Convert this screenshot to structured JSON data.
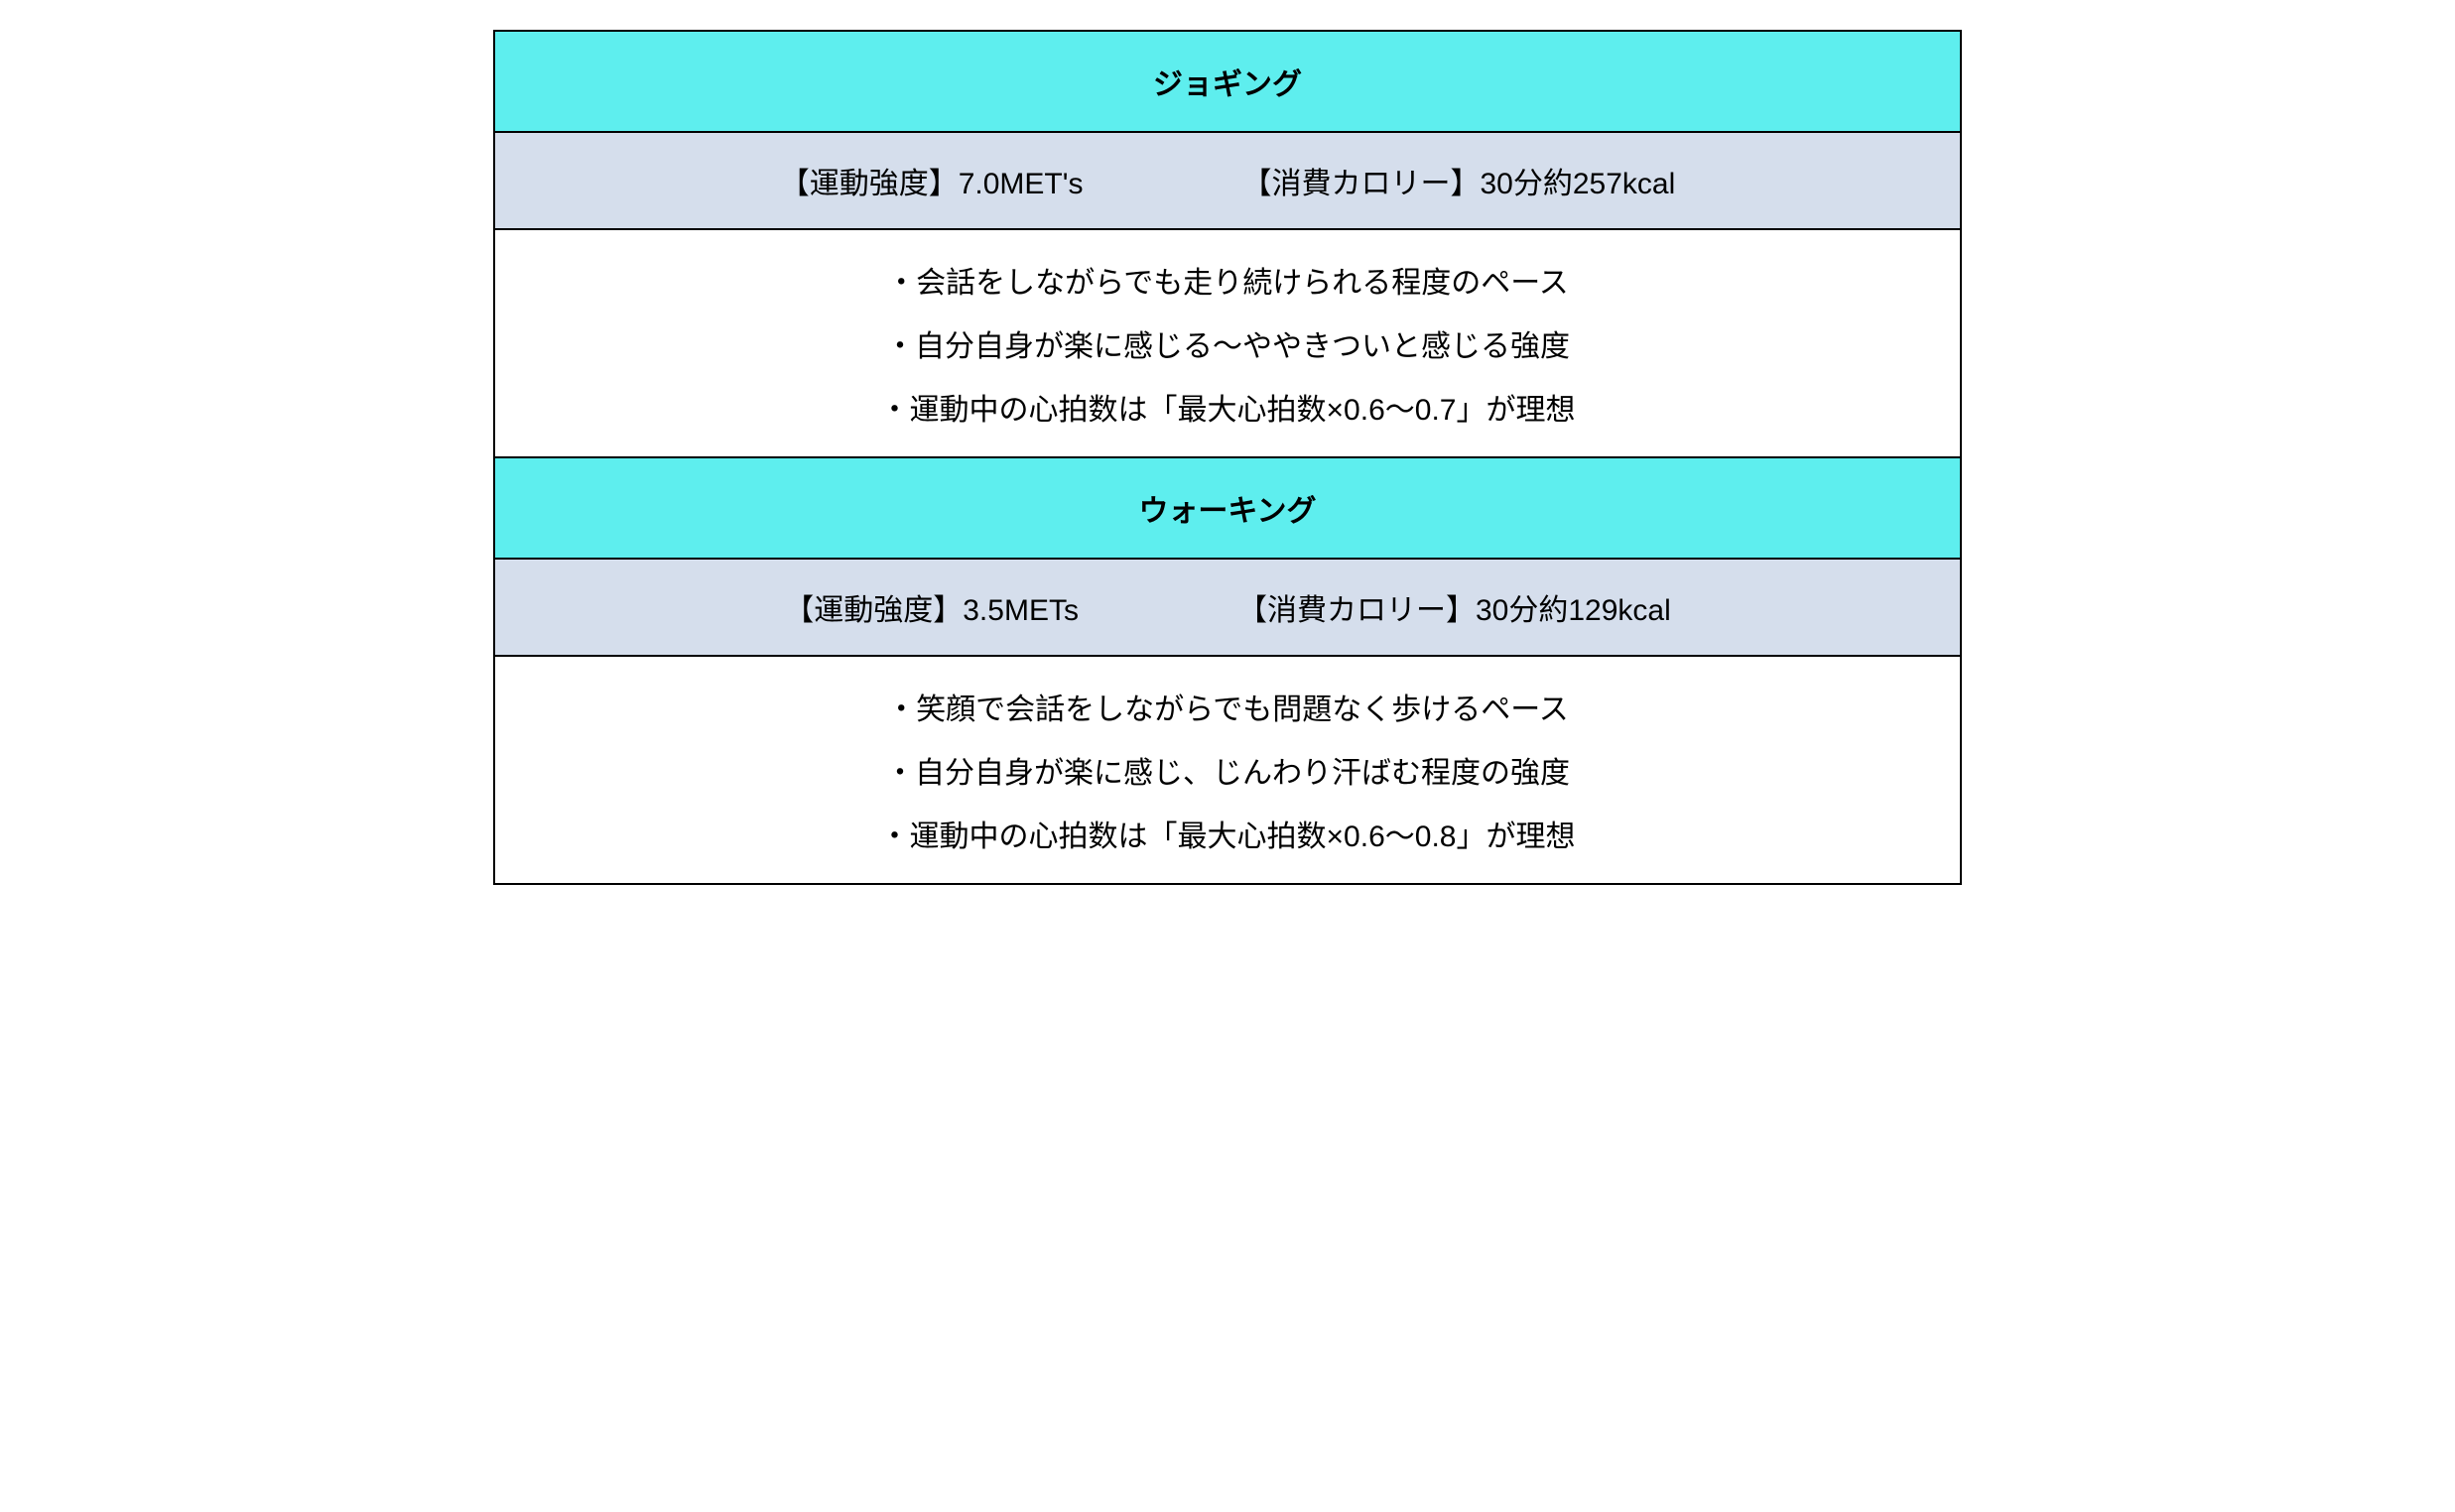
{
  "colors": {
    "header_bg": "#5eeeee",
    "metrics_bg": "#d5deec",
    "details_bg": "#ffffff",
    "border": "#000000",
    "text": "#000000"
  },
  "typography": {
    "font_size_pt": 22,
    "header_weight": "bold",
    "body_weight": "normal"
  },
  "layout": {
    "rows_per_section": 3,
    "sections": 2
  },
  "sections": [
    {
      "title": "ジョギング",
      "intensity": "【運動強度】7.0MET's",
      "calories": "【消費カロリー】30分約257kcal",
      "details": [
        "・会話をしながらでも走り続けられる程度のペース",
        "・自分自身が楽に感じる〜ややきついと感じる強度",
        "・運動中の心拍数は「最大心拍数×0.6〜0.7」が理想"
      ]
    },
    {
      "title": "ウォーキング",
      "intensity": "【運動強度】3.5METs",
      "calories": "【消費カロリー】30分約129kcal",
      "details": [
        "・笑顔で会話をしながらでも問題なく歩けるペース",
        "・自分自身が楽に感じ、じんわり汗ばむ程度の強度",
        "・運動中の心拍数は「最大心拍数×0.6〜0.8」が理想"
      ]
    }
  ]
}
